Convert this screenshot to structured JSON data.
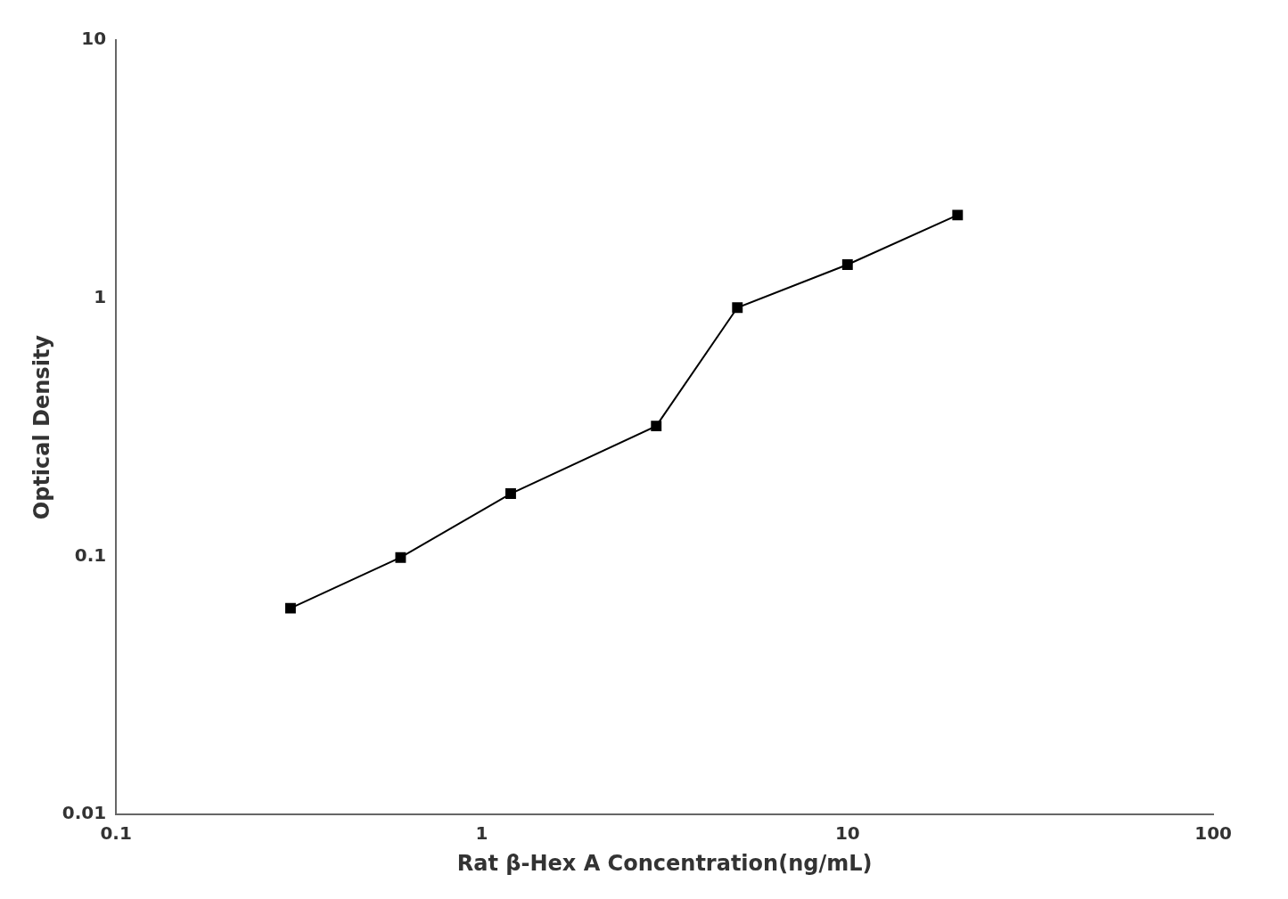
{
  "chart_data": {
    "type": "line",
    "x": [
      0.3,
      0.6,
      1.2,
      3.0,
      5.0,
      10.0,
      20.0
    ],
    "values": [
      0.063,
      0.099,
      0.175,
      0.32,
      0.92,
      1.35,
      2.1
    ],
    "xlabel": "Rat β-Hex A Concentration(ng/mL)",
    "ylabel": "Optical Density",
    "xlim": [
      0.1,
      100
    ],
    "ylim": [
      0.01,
      10
    ],
    "xticks": [
      0.1,
      1,
      10,
      100
    ],
    "yticks": [
      0.01,
      0.1,
      1,
      10
    ],
    "log": true,
    "color": "#000000",
    "marker": "square",
    "grid": false
  }
}
